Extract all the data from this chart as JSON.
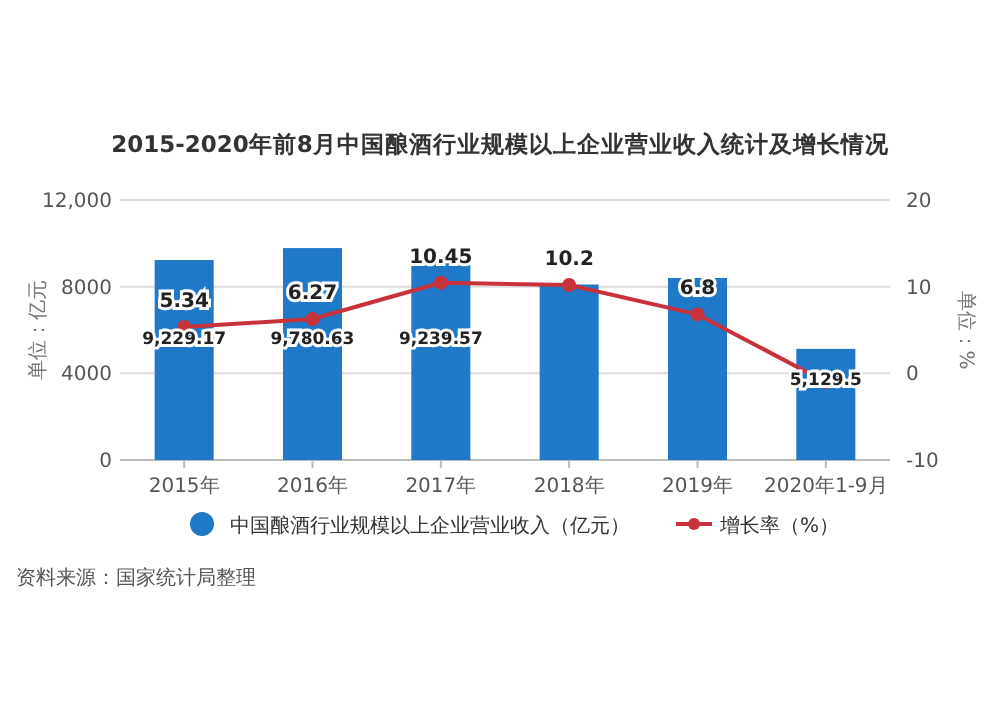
{
  "chart_data": {
    "type": "bar",
    "title": "2015-2020年前8月中国酿酒行业规模以上企业营业收入统计及增长情况",
    "ylabel": "单位：亿元",
    "y2label": "单位：%",
    "categories": [
      "2015年",
      "2016年",
      "2017年",
      "2018年",
      "2019年",
      "2020年1-9月"
    ],
    "series": [
      {
        "name": "中国酿酒行业规模以上企业营业收入（亿元）",
        "color": "#1f78c8",
        "values": [
          9229.17,
          9780.63,
          9239.57,
          8100,
          8400,
          5129.5
        ],
        "value_labels": [
          "9,229.17",
          "9,780.63",
          "9,239.57",
          null,
          null,
          "5,129.5"
        ]
      },
      {
        "name": "增长率（%）",
        "type": "line",
        "axis": "y2",
        "color": "#c8323a",
        "marker": "circle",
        "values": [
          5.34,
          6.27,
          10.45,
          10.2,
          6.8,
          -1
        ],
        "value_labels": [
          "5.34",
          "6.27",
          "10.45",
          "10.2",
          "6.8",
          null
        ]
      }
    ],
    "ylim": [
      0,
      12000
    ],
    "yticks": [
      0,
      {
        "value": 4000,
        "label": "4000"
      },
      8000,
      {
        "value": 12000,
        "label": "12,000"
      }
    ],
    "y2lim": [
      -10,
      20
    ],
    "y2ticks": [
      -10,
      0,
      10,
      20
    ],
    "grid": "y",
    "legend": "bottom",
    "annotations": [
      "资料来源：国家统计局整理"
    ]
  }
}
